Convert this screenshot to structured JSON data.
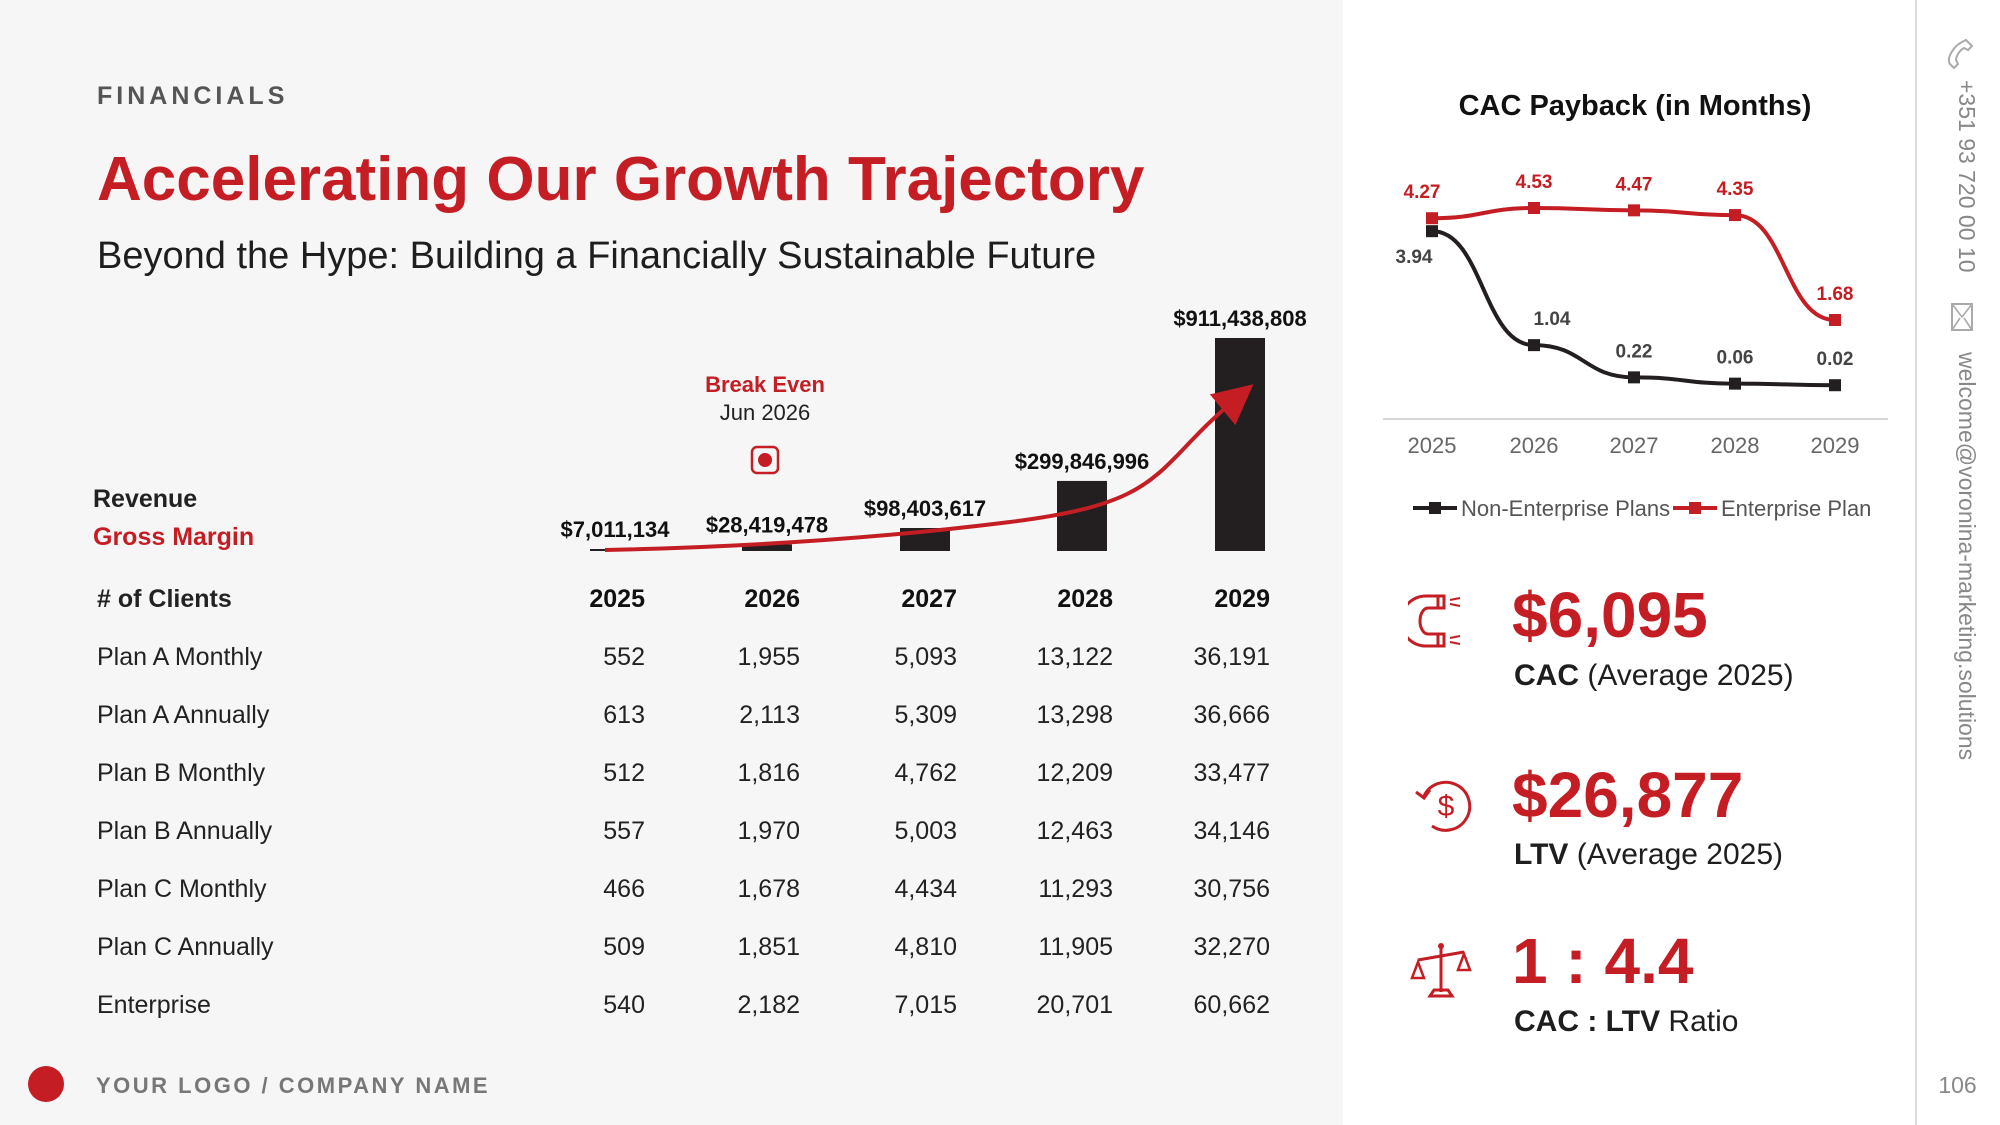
{
  "header": {
    "section": "FINANCIALS",
    "title": "Accelerating Our Growth Trajectory",
    "subtitle": "Beyond the Hype: Building a Financially Sustainable Future"
  },
  "labels": {
    "revenue": "Revenue",
    "gross_margin": "Gross Margin"
  },
  "break_even": {
    "title": "Break Even",
    "date": "Jun 2026"
  },
  "table": {
    "header": "# of Clients",
    "years": [
      "2025",
      "2026",
      "2027",
      "2028",
      "2029"
    ],
    "rows": [
      {
        "label": "Plan A Monthly",
        "values": [
          "552",
          "1,955",
          "5,093",
          "13,122",
          "36,191"
        ]
      },
      {
        "label": "Plan A Annually",
        "values": [
          "613",
          "2,113",
          "5,309",
          "13,298",
          "36,666"
        ]
      },
      {
        "label": "Plan B Monthly",
        "values": [
          "512",
          "1,816",
          "4,762",
          "12,209",
          "33,477"
        ]
      },
      {
        "label": "Plan B Annually",
        "values": [
          "557",
          "1,970",
          "5,003",
          "12,463",
          "34,146"
        ]
      },
      {
        "label": "Plan C Monthly",
        "values": [
          "466",
          "1,678",
          "4,434",
          "11,293",
          "30,756"
        ]
      },
      {
        "label": "Plan C Annually",
        "values": [
          "509",
          "1,851",
          "4,810",
          "11,905",
          "32,270"
        ]
      },
      {
        "label": "Enterprise",
        "values": [
          "540",
          "2,182",
          "7,015",
          "20,701",
          "60,662"
        ]
      }
    ]
  },
  "footer": {
    "company": "YOUR LOGO / COMPANY NAME",
    "page": "106"
  },
  "contact": {
    "phone": "+351 93 720 00 10",
    "email": "welcome@voronina-marketing.solutions"
  },
  "kpis": [
    {
      "value": "$6,095",
      "label_bold": "CAC",
      "label_rest": " (Average 2025)",
      "icon": "magnet-icon"
    },
    {
      "value": "$26,877",
      "label_bold": "LTV",
      "label_rest": " (Average 2025)",
      "icon": "dollar-cycle-icon"
    },
    {
      "value": "1 : 4.4",
      "label_bold": "CAC : LTV",
      "label_rest": " Ratio",
      "icon": "scale-icon"
    }
  ],
  "colors": {
    "accent": "#c41e24",
    "dark": "#231f20"
  },
  "chart_data": [
    {
      "type": "bar",
      "categories": [
        "2025",
        "2026",
        "2027",
        "2028",
        "2029"
      ],
      "values": [
        7011134,
        28419478,
        98403617,
        299846996,
        911438808
      ],
      "value_labels": [
        "$7,011,134",
        "$28,419,478",
        "$98,403,617",
        "$299,846,996",
        "$911,438,808"
      ],
      "series_names": [
        "Revenue",
        "Gross Margin"
      ],
      "ylim": [
        0,
        911438808
      ],
      "annotation": "Break Even Jun 2026"
    },
    {
      "type": "line",
      "title": "CAC Payback (in Months)",
      "categories": [
        "2025",
        "2026",
        "2027",
        "2028",
        "2029"
      ],
      "series": [
        {
          "name": "Non-Enterprise Plans",
          "values": [
            3.94,
            1.04,
            0.22,
            0.06,
            0.02
          ],
          "labels": [
            "3.94",
            "1.04",
            "0.22",
            "0.06",
            "0.02"
          ],
          "color": "#231f20"
        },
        {
          "name": "Enterprise Plan",
          "values": [
            4.27,
            4.53,
            4.47,
            4.35,
            1.68
          ],
          "labels": [
            "4.27",
            "4.53",
            "4.47",
            "4.35",
            "1.68"
          ],
          "color": "#c41e24"
        }
      ],
      "legend": "bottom"
    }
  ]
}
